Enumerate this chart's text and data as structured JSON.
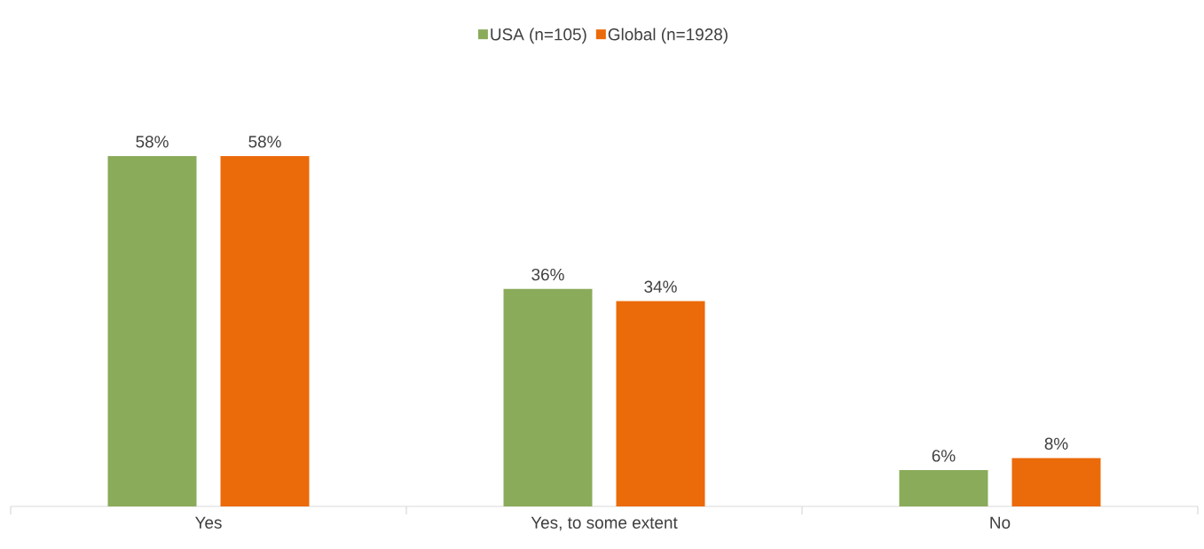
{
  "chart_data": {
    "type": "bar",
    "categories": [
      "Yes",
      "Yes, to some extent",
      "No"
    ],
    "series": [
      {
        "name": "USA (n=105)",
        "color": "#8aab5a",
        "values": [
          58,
          36,
          6
        ],
        "value_labels": [
          "58%",
          "36%",
          "6%"
        ]
      },
      {
        "name": "Global (n=1928)",
        "color": "#eb6a0a",
        "values": [
          58,
          34,
          8
        ],
        "value_labels": [
          "58%",
          "34%",
          "8%"
        ]
      }
    ],
    "legend": "top"
  }
}
